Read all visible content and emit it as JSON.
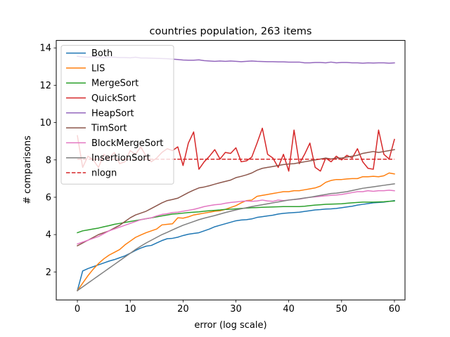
{
  "chart_data": {
    "type": "line",
    "title": "countries population, 263 items",
    "xlabel": "error (log scale)",
    "ylabel": "# comparisons",
    "xlim": [
      -4,
      62
    ],
    "ylim": [
      0.5,
      14.4
    ],
    "xticks": [
      0,
      10,
      20,
      30,
      40,
      50,
      60
    ],
    "yticks": [
      2,
      4,
      6,
      8,
      10,
      12,
      14
    ],
    "grid": false,
    "legend_position": "top-left",
    "x": [
      0,
      1,
      2,
      3,
      4,
      5,
      6,
      7,
      8,
      9,
      10,
      11,
      12,
      13,
      14,
      15,
      16,
      17,
      18,
      19,
      20,
      21,
      22,
      23,
      24,
      25,
      26,
      27,
      28,
      29,
      30,
      31,
      32,
      33,
      34,
      35,
      36,
      37,
      38,
      39,
      40,
      41,
      42,
      43,
      44,
      45,
      46,
      47,
      48,
      49,
      50,
      51,
      52,
      53,
      54,
      55,
      56,
      57,
      58,
      59,
      60
    ],
    "series": [
      {
        "name": "Both",
        "color": "#1f77b4",
        "dashed": false,
        "values": [
          1.0,
          2.05,
          2.18,
          2.28,
          2.38,
          2.48,
          2.58,
          2.66,
          2.76,
          2.86,
          3.0,
          3.15,
          3.28,
          3.38,
          3.42,
          3.55,
          3.68,
          3.78,
          3.8,
          3.86,
          3.95,
          4.02,
          4.06,
          4.1,
          4.2,
          4.3,
          4.42,
          4.5,
          4.58,
          4.66,
          4.74,
          4.78,
          4.8,
          4.84,
          4.92,
          4.96,
          5.0,
          5.04,
          5.1,
          5.14,
          5.16,
          5.18,
          5.2,
          5.24,
          5.28,
          5.32,
          5.34,
          5.37,
          5.38,
          5.4,
          5.44,
          5.48,
          5.52,
          5.58,
          5.62,
          5.66,
          5.7,
          5.72,
          5.74,
          5.78,
          5.82
        ]
      },
      {
        "name": "LIS",
        "color": "#ff7f0e",
        "dashed": false,
        "values": [
          1.0,
          1.4,
          1.8,
          2.15,
          2.45,
          2.7,
          2.9,
          3.05,
          3.2,
          3.45,
          3.65,
          3.85,
          3.98,
          4.1,
          4.2,
          4.3,
          4.52,
          4.55,
          4.58,
          4.9,
          4.88,
          4.95,
          5.05,
          5.1,
          5.15,
          5.2,
          5.25,
          5.28,
          5.35,
          5.45,
          5.55,
          5.7,
          5.82,
          5.85,
          6.05,
          6.1,
          6.15,
          6.2,
          6.25,
          6.3,
          6.3,
          6.35,
          6.35,
          6.4,
          6.45,
          6.5,
          6.6,
          6.8,
          6.9,
          6.95,
          6.95,
          6.98,
          7.0,
          7.0,
          7.1,
          7.1,
          7.12,
          7.1,
          7.15,
          7.3,
          7.25
        ]
      },
      {
        "name": "MergeSort",
        "color": "#2ca02c",
        "dashed": false,
        "values": [
          4.1,
          4.2,
          4.25,
          4.3,
          4.35,
          4.42,
          4.48,
          4.55,
          4.6,
          4.65,
          4.7,
          4.75,
          4.8,
          4.85,
          4.9,
          4.95,
          5.0,
          5.05,
          5.1,
          5.12,
          5.15,
          5.18,
          5.2,
          5.22,
          5.25,
          5.28,
          5.3,
          5.32,
          5.35,
          5.36,
          5.38,
          5.4,
          5.42,
          5.44,
          5.45,
          5.46,
          5.47,
          5.48,
          5.49,
          5.5,
          5.5,
          5.5,
          5.5,
          5.52,
          5.55,
          5.58,
          5.6,
          5.62,
          5.63,
          5.64,
          5.65,
          5.68,
          5.7,
          5.72,
          5.74,
          5.74,
          5.74,
          5.75,
          5.76,
          5.78,
          5.8
        ]
      },
      {
        "name": "QuickSort",
        "color": "#d62728",
        "dashed": false,
        "values": [
          9.3,
          7.6,
          8.2,
          8.0,
          7.6,
          8.3,
          8.1,
          8.4,
          7.8,
          7.9,
          8.5,
          8.3,
          8.7,
          8.2,
          7.9,
          8.1,
          8.4,
          8.6,
          8.5,
          8.7,
          7.7,
          8.9,
          9.5,
          7.5,
          7.9,
          8.2,
          8.55,
          8.05,
          8.4,
          8.35,
          8.65,
          7.9,
          7.95,
          8.15,
          8.9,
          9.7,
          8.3,
          8.1,
          7.6,
          8.3,
          7.4,
          9.6,
          7.8,
          8.3,
          8.9,
          7.6,
          7.4,
          8.1,
          7.9,
          8.2,
          8.0,
          8.25,
          8.1,
          8.6,
          7.9,
          7.55,
          7.5,
          9.6,
          8.3,
          8.05,
          9.1
        ]
      },
      {
        "name": "HeapSort",
        "color": "#9467bd",
        "dashed": false,
        "values": [
          13.55,
          13.52,
          13.5,
          13.52,
          13.5,
          13.48,
          13.5,
          13.5,
          13.48,
          13.48,
          13.47,
          13.5,
          13.46,
          13.46,
          13.45,
          13.44,
          13.43,
          13.42,
          13.4,
          13.38,
          13.35,
          13.34,
          13.34,
          13.36,
          13.32,
          13.3,
          13.28,
          13.3,
          13.28,
          13.3,
          13.28,
          13.26,
          13.28,
          13.3,
          13.28,
          13.27,
          13.26,
          13.26,
          13.25,
          13.25,
          13.24,
          13.24,
          13.24,
          13.2,
          13.2,
          13.22,
          13.22,
          13.2,
          13.24,
          13.2,
          13.22,
          13.22,
          13.2,
          13.2,
          13.18,
          13.2,
          13.19,
          13.2,
          13.2,
          13.18,
          13.2
        ]
      },
      {
        "name": "TimSort",
        "color": "#8c564b",
        "dashed": false,
        "values": [
          3.4,
          3.55,
          3.7,
          3.85,
          4.0,
          4.1,
          4.2,
          4.35,
          4.5,
          4.7,
          4.9,
          5.05,
          5.15,
          5.25,
          5.4,
          5.55,
          5.7,
          5.82,
          5.88,
          5.95,
          6.1,
          6.25,
          6.38,
          6.5,
          6.55,
          6.62,
          6.7,
          6.78,
          6.85,
          6.92,
          7.05,
          7.12,
          7.2,
          7.3,
          7.45,
          7.55,
          7.6,
          7.65,
          7.7,
          7.75,
          7.78,
          7.8,
          7.85,
          7.9,
          7.95,
          8.0,
          8.05,
          8.1,
          8.05,
          8.1,
          8.1,
          8.15,
          8.2,
          8.25,
          8.35,
          8.4,
          8.45,
          8.4,
          8.45,
          8.5,
          8.55
        ]
      },
      {
        "name": "BlockMergeSort",
        "color": "#e377c2",
        "dashed": false,
        "values": [
          3.5,
          3.6,
          3.7,
          3.8,
          3.9,
          4.05,
          4.2,
          4.3,
          4.4,
          4.5,
          4.6,
          4.7,
          4.8,
          4.85,
          4.9,
          5.0,
          5.08,
          5.12,
          5.18,
          5.2,
          5.25,
          5.3,
          5.35,
          5.42,
          5.5,
          5.55,
          5.6,
          5.62,
          5.68,
          5.72,
          5.75,
          5.78,
          5.8,
          5.78,
          5.8,
          5.85,
          5.8,
          5.78,
          5.85,
          5.82,
          5.85,
          5.88,
          5.9,
          5.95,
          6.0,
          6.02,
          6.05,
          6.08,
          6.1,
          6.12,
          6.15,
          6.2,
          6.25,
          6.3,
          6.3,
          6.35,
          6.32,
          6.35,
          6.35,
          6.38,
          6.35
        ]
      },
      {
        "name": "InsertionSort",
        "color": "#7f7f7f",
        "dashed": false,
        "values": [
          1.0,
          1.2,
          1.4,
          1.6,
          1.8,
          2.0,
          2.2,
          2.4,
          2.6,
          2.8,
          3.0,
          3.2,
          3.38,
          3.55,
          3.7,
          3.85,
          4.0,
          4.12,
          4.25,
          4.38,
          4.5,
          4.6,
          4.7,
          4.8,
          4.88,
          4.95,
          5.02,
          5.1,
          5.18,
          5.25,
          5.32,
          5.38,
          5.44,
          5.5,
          5.55,
          5.6,
          5.65,
          5.7,
          5.75,
          5.8,
          5.85,
          5.88,
          5.92,
          5.96,
          6.0,
          6.05,
          6.1,
          6.15,
          6.2,
          6.22,
          6.26,
          6.3,
          6.36,
          6.42,
          6.48,
          6.52,
          6.56,
          6.6,
          6.64,
          6.68,
          6.72
        ]
      },
      {
        "name": "nlogn",
        "color": "#d62728",
        "dashed": true,
        "values": [
          8.04,
          8.04,
          8.04,
          8.04,
          8.04,
          8.04,
          8.04,
          8.04,
          8.04,
          8.04,
          8.04,
          8.04,
          8.04,
          8.04,
          8.04,
          8.04,
          8.04,
          8.04,
          8.04,
          8.04,
          8.04,
          8.04,
          8.04,
          8.04,
          8.04,
          8.04,
          8.04,
          8.04,
          8.04,
          8.04,
          8.04,
          8.04,
          8.04,
          8.04,
          8.04,
          8.04,
          8.04,
          8.04,
          8.04,
          8.04,
          8.04,
          8.04,
          8.04,
          8.04,
          8.04,
          8.04,
          8.04,
          8.04,
          8.04,
          8.04,
          8.04,
          8.04,
          8.04,
          8.04,
          8.04,
          8.04,
          8.04,
          8.04,
          8.04,
          8.04,
          8.04
        ]
      }
    ]
  }
}
